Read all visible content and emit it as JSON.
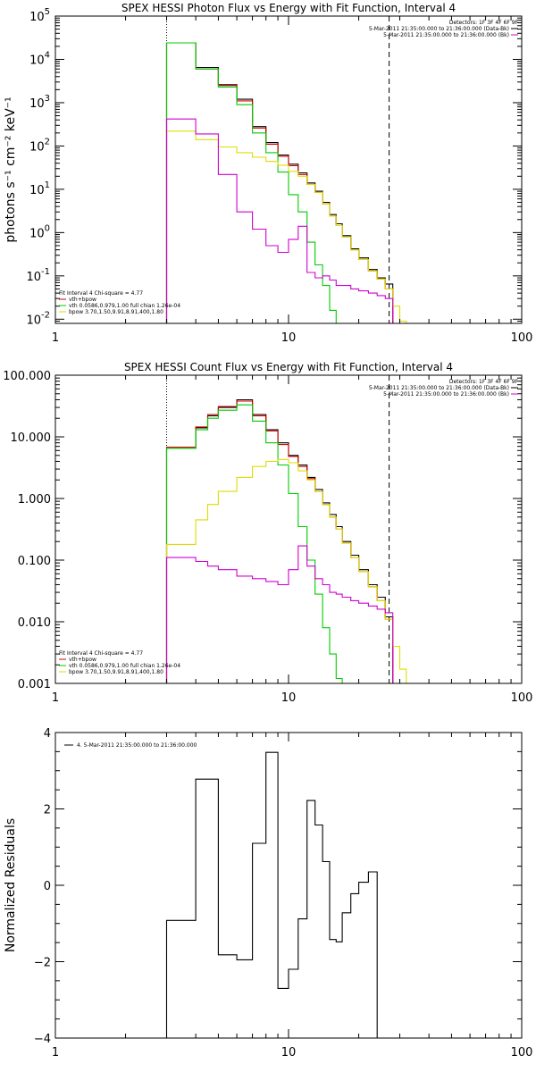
{
  "chart_data": [
    {
      "type": "line",
      "title": "SPEX HESSI Photon Flux vs Energy with Fit Function, Interval 4",
      "xlabel": "",
      "ylabel": "photons s⁻¹ cm⁻² keV⁻¹",
      "xscale": "log",
      "yscale": "log",
      "xlim": [
        1,
        100
      ],
      "ylim": [
        0.008,
        100000
      ],
      "x_ticks": [
        "1",
        "10",
        "100"
      ],
      "y_ticks": [
        {
          "base": "10",
          "exp": "-2",
          "value": 0.01
        },
        {
          "base": "10",
          "exp": "-1",
          "value": 0.1
        },
        {
          "base": "10",
          "exp": "0",
          "value": 1
        },
        {
          "base": "10",
          "exp": "1",
          "value": 10
        },
        {
          "base": "10",
          "exp": "2",
          "value": 100
        },
        {
          "base": "10",
          "exp": "3",
          "value": 1000
        },
        {
          "base": "10",
          "exp": "4",
          "value": 10000
        },
        {
          "base": "10",
          "exp": "5",
          "value": 100000
        }
      ],
      "vlines": [
        3,
        27
      ],
      "legend_top": {
        "position": "top-right",
        "header": "Detectors: 1F 3F 4F 6F 9F",
        "entries": [
          {
            "text": "5-Mar-2011 21:35:00.000 to 21:36:00.000 (Data-Bk)",
            "color": "#000000"
          },
          {
            "text": "5-Mar-2011 21:35:00.000 to 21:36:00.000 (Bk)",
            "color": "#d000d0"
          }
        ]
      },
      "legend_fit": {
        "position": "bottom-left",
        "header": "Fit Interval 4   Chi-square = 4.77",
        "entries": [
          {
            "text": "vth+bpow",
            "color": "#d00000"
          },
          {
            "text": "vth 0.0586,0.979,1.00  full chian 1.26e-04",
            "color": "#00cc00"
          },
          {
            "text": "bpow 3.70,1.50,9.91,8.91,400,1.80",
            "color": "#dddd00"
          }
        ]
      },
      "edges": [
        3.0,
        3.5,
        4.0,
        4.5,
        5.0,
        6.0,
        7.0,
        8.0,
        9.0,
        10.0,
        11.0,
        12.0,
        13.0,
        14.0,
        15.0,
        16.0,
        17.0,
        18.5,
        20.0,
        22.0,
        24.0,
        26.0,
        28.0,
        30.0,
        32.0
      ],
      "series": [
        {
          "name": "Data-Bk",
          "color": "#000000",
          "values": [
            24000,
            24000,
            6500,
            6500,
            2600,
            1200,
            280,
            120,
            62,
            38,
            24,
            14,
            9,
            5,
            2.6,
            1.6,
            0.85,
            0.42,
            0.26,
            0.14,
            0.09,
            0.065,
            null,
            null
          ]
        },
        {
          "name": "vth+bpow",
          "color": "#d00000",
          "values": [
            24000,
            24000,
            6000,
            6000,
            2500,
            1100,
            260,
            110,
            58,
            35,
            22,
            13,
            8.5,
            4.6,
            2.4,
            1.45,
            0.8,
            0.4,
            0.24,
            0.13,
            0.085,
            0.05,
            null,
            null
          ]
        },
        {
          "name": "vth",
          "color": "#00cc00",
          "values": [
            24000,
            24000,
            6000,
            6000,
            2300,
            900,
            200,
            70,
            25,
            7.5,
            3.0,
            0.6,
            0.18,
            0.06,
            0.016,
            0.008,
            null,
            null,
            null,
            null,
            null,
            null,
            null,
            null
          ]
        },
        {
          "name": "bpow",
          "color": "#dddd00",
          "values": [
            220,
            220,
            140,
            140,
            95,
            70,
            55,
            44,
            36,
            26,
            20,
            13,
            8.5,
            4.6,
            2.4,
            1.45,
            0.8,
            0.4,
            0.24,
            0.13,
            0.085,
            0.05,
            0.02,
            0.009
          ]
        },
        {
          "name": "Bk",
          "color": "#d000d0",
          "values": [
            420,
            420,
            190,
            190,
            22,
            3.0,
            1.2,
            0.5,
            0.35,
            0.7,
            1.4,
            0.12,
            0.09,
            0.1,
            0.08,
            0.06,
            0.06,
            0.05,
            0.045,
            0.04,
            0.035,
            0.03,
            null,
            null
          ]
        }
      ]
    },
    {
      "type": "line",
      "title": "SPEX HESSI Count Flux vs Energy with Fit Function, Interval 4",
      "xlabel": "",
      "ylabel": "",
      "xscale": "log",
      "yscale": "log",
      "xlim": [
        1,
        100
      ],
      "ylim": [
        0.001,
        100
      ],
      "x_ticks": [
        "1",
        "10",
        "100"
      ],
      "y_ticks": [
        {
          "label": "0.001",
          "value": 0.001
        },
        {
          "label": "0.010",
          "value": 0.01
        },
        {
          "label": "0.100",
          "value": 0.1
        },
        {
          "label": "1.000",
          "value": 1
        },
        {
          "label": "10.000",
          "value": 10
        },
        {
          "label": "100.000",
          "value": 100
        }
      ],
      "vlines": [
        3,
        27
      ],
      "legend_top": {
        "position": "top-right",
        "header": "Detectors: 1F 3F 4F 6F 9F",
        "entries": [
          {
            "text": "5-Mar-2011 21:35:00.000 to 21:36:00.000 (Data-Bk)",
            "color": "#000000"
          },
          {
            "text": "5-Mar-2011 21:35:00.000 to 21:36:00.000 (Bk)",
            "color": "#d000d0"
          }
        ]
      },
      "legend_fit": {
        "position": "bottom-left",
        "header": "Fit Interval 4   Chi-square = 4.77",
        "entries": [
          {
            "text": "vth+bpow",
            "color": "#d00000"
          },
          {
            "text": "vth 0.0586,0.979,1.00  full chian 1.26e-04",
            "color": "#00cc00"
          },
          {
            "text": "bpow 3.70,1.50,9.91,8.91,400,1.80",
            "color": "#dddd00"
          }
        ]
      },
      "edges": [
        3.0,
        3.5,
        4.0,
        4.5,
        5.0,
        6.0,
        7.0,
        8.0,
        9.0,
        10.0,
        11.0,
        12.0,
        13.0,
        14.0,
        15.0,
        16.0,
        17.0,
        18.5,
        20.0,
        22.0,
        24.0,
        26.0,
        28.0,
        30.0,
        32.0,
        35.0
      ],
      "series": [
        {
          "name": "Data-Bk",
          "color": "#000000",
          "values": [
            6.5,
            6.5,
            14,
            22,
            30,
            40,
            23,
            13,
            8.0,
            5.0,
            3.5,
            2.2,
            1.4,
            0.85,
            0.55,
            0.35,
            0.2,
            0.12,
            0.07,
            0.04,
            0.025,
            0.012,
            null,
            null,
            null
          ]
        },
        {
          "name": "vth+bpow",
          "color": "#d00000",
          "values": [
            6.8,
            6.8,
            14.5,
            23,
            31,
            38,
            22,
            12.5,
            7.5,
            4.8,
            3.3,
            2.1,
            1.3,
            0.8,
            0.5,
            0.32,
            0.19,
            0.11,
            0.065,
            0.037,
            0.022,
            0.011,
            null,
            null,
            null
          ]
        },
        {
          "name": "vth",
          "color": "#00cc00",
          "values": [
            6.5,
            6.5,
            13,
            20,
            27,
            33,
            18,
            8.0,
            3.5,
            1.2,
            0.35,
            0.1,
            0.028,
            0.008,
            0.003,
            0.0012,
            null,
            null,
            null,
            null,
            null,
            null,
            null,
            null,
            null
          ]
        },
        {
          "name": "bpow",
          "color": "#dddd00",
          "values": [
            0.18,
            0.18,
            0.45,
            0.8,
            1.3,
            2.2,
            3.3,
            4.0,
            4.3,
            3.8,
            2.8,
            2.0,
            1.3,
            0.8,
            0.5,
            0.32,
            0.19,
            0.11,
            0.065,
            0.037,
            0.022,
            0.011,
            0.004,
            0.0017,
            0.001
          ]
        },
        {
          "name": "Bk",
          "color": "#d000d0",
          "values": [
            0.11,
            0.11,
            0.095,
            0.08,
            0.07,
            0.055,
            0.05,
            0.045,
            0.04,
            0.07,
            0.17,
            0.08,
            0.05,
            0.04,
            0.03,
            0.028,
            0.025,
            0.022,
            0.02,
            0.018,
            0.016,
            0.014,
            null,
            null,
            null
          ]
        }
      ]
    },
    {
      "type": "line",
      "title": "",
      "xlabel": "",
      "ylabel": "Normalized Residuals",
      "xscale": "log",
      "yscale": "linear",
      "xlim": [
        1,
        100
      ],
      "ylim": [
        -4,
        4
      ],
      "x_ticks": [
        "1",
        "10",
        "100"
      ],
      "y_ticks": [
        {
          "label": "−4",
          "value": -4
        },
        {
          "label": "−2",
          "value": -2
        },
        {
          "label": "0",
          "value": 0
        },
        {
          "label": "2",
          "value": 2
        },
        {
          "label": "4",
          "value": 4
        }
      ],
      "vlines": [],
      "legend_top": {
        "position": "top-left",
        "header": "",
        "entries": [
          {
            "text": "4. 5-Mar-2011 21:35:00.000 to 21:36:00.000",
            "color": "#000000"
          }
        ]
      },
      "legend_fit": null,
      "edges": [
        3.0,
        3.5,
        4.0,
        4.5,
        5.0,
        6.0,
        7.0,
        8.0,
        9.0,
        10.0,
        11.0,
        12.0,
        13.0,
        14.0,
        15.0,
        16.0,
        17.0,
        18.5,
        20.0,
        22.0,
        24.0,
        26.0,
        28.0
      ],
      "series": [
        {
          "name": "Residuals",
          "color": "#000000",
          "values": [
            -0.92,
            -0.92,
            2.78,
            2.78,
            -1.82,
            -1.95,
            1.1,
            3.48,
            -2.7,
            -2.2,
            -0.88,
            2.22,
            1.58,
            0.62,
            -1.42,
            -1.48,
            -0.72,
            -0.22,
            0.08,
            0.35,
            null
          ]
        }
      ]
    }
  ]
}
